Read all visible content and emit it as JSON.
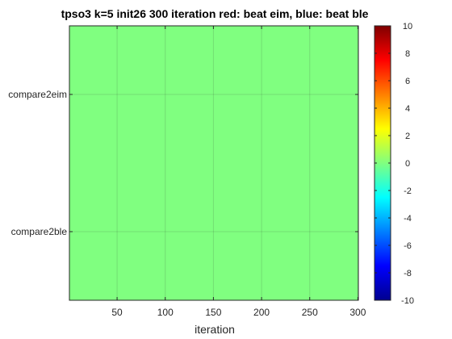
{
  "chart_data": {
    "type": "heatmap",
    "title": "tpso3 k=5 init26 300 iteration red: beat eim, blue: beat ble",
    "xlabel": "iteration",
    "ylabel": "",
    "x_ticks": [
      50,
      100,
      150,
      200,
      250,
      300
    ],
    "xlim": [
      0.5,
      300.5
    ],
    "rows": [
      "compare2eim",
      "compare2ble"
    ],
    "values": [
      {
        "row": "compare2eim",
        "x_range": [
          1,
          300
        ],
        "value": 0
      },
      {
        "row": "compare2ble",
        "x_range": [
          1,
          300
        ],
        "value": 0
      }
    ],
    "colorbar": {
      "colormap": "jet",
      "clim": [
        -10,
        10
      ],
      "ticks": [
        10,
        8,
        6,
        4,
        2,
        0,
        -2,
        -4,
        -6,
        -8,
        -10
      ]
    },
    "grid": true
  }
}
